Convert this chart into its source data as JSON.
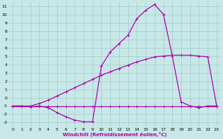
{
  "xlabel": "Windchill (Refroidissement éolien,°C)",
  "bg_color": "#c8e8e8",
  "grid_color": "#a0c8c8",
  "line_color": "#aa00aa",
  "ylim": [
    -3.5,
    11.5
  ],
  "xlim": [
    -0.5,
    23.5
  ],
  "yticks": [
    11,
    10,
    9,
    8,
    7,
    6,
    5,
    4,
    3,
    2,
    1,
    0,
    -1,
    -2,
    -3
  ],
  "xticks": [
    0,
    1,
    2,
    3,
    4,
    5,
    6,
    7,
    8,
    9,
    10,
    11,
    12,
    13,
    14,
    15,
    16,
    17,
    18,
    19,
    20,
    21,
    22,
    23
  ],
  "curve1_x": [
    0,
    1,
    2,
    3,
    4,
    5,
    6,
    7,
    8,
    9,
    10,
    11,
    12,
    13,
    14,
    15,
    16,
    17,
    18,
    19,
    20,
    21,
    22,
    23
  ],
  "curve1_y": [
    -1.0,
    -1.0,
    -1.0,
    -1.0,
    -1.0,
    -1.0,
    -1.0,
    -1.0,
    -1.0,
    -1.0,
    -1.0,
    -1.0,
    -1.0,
    -1.0,
    -1.0,
    -1.0,
    -1.0,
    -1.0,
    -1.0,
    -1.0,
    -1.0,
    -1.0,
    -1.0,
    -1.0
  ],
  "curve2_x": [
    0,
    1,
    2,
    3,
    4,
    5,
    6,
    7,
    8,
    9,
    10,
    11,
    12,
    13,
    14,
    15,
    16,
    17,
    18,
    19,
    20,
    21,
    22,
    23
  ],
  "curve2_y": [
    -1.0,
    -1.0,
    -1.0,
    -0.7,
    -0.3,
    0.2,
    0.7,
    1.2,
    1.7,
    2.2,
    2.7,
    3.1,
    3.5,
    3.9,
    4.3,
    4.6,
    4.9,
    5.0,
    5.1,
    5.1,
    5.1,
    5.0,
    4.9,
    -1.0
  ],
  "curve3_x": [
    0,
    1,
    2,
    3,
    4,
    5,
    6,
    7,
    8,
    9,
    10,
    11,
    12,
    13,
    14,
    15,
    16,
    17,
    18,
    19,
    20,
    21,
    22,
    23
  ],
  "curve3_y": [
    -1.0,
    -1.0,
    -1.1,
    -1.0,
    -1.2,
    -1.8,
    -2.3,
    -2.7,
    -2.9,
    -2.9,
    3.8,
    5.5,
    6.5,
    7.5,
    9.5,
    10.5,
    11.2,
    10.0,
    5.0,
    -0.5,
    -1.0,
    -1.2,
    -1.0,
    -1.0
  ]
}
